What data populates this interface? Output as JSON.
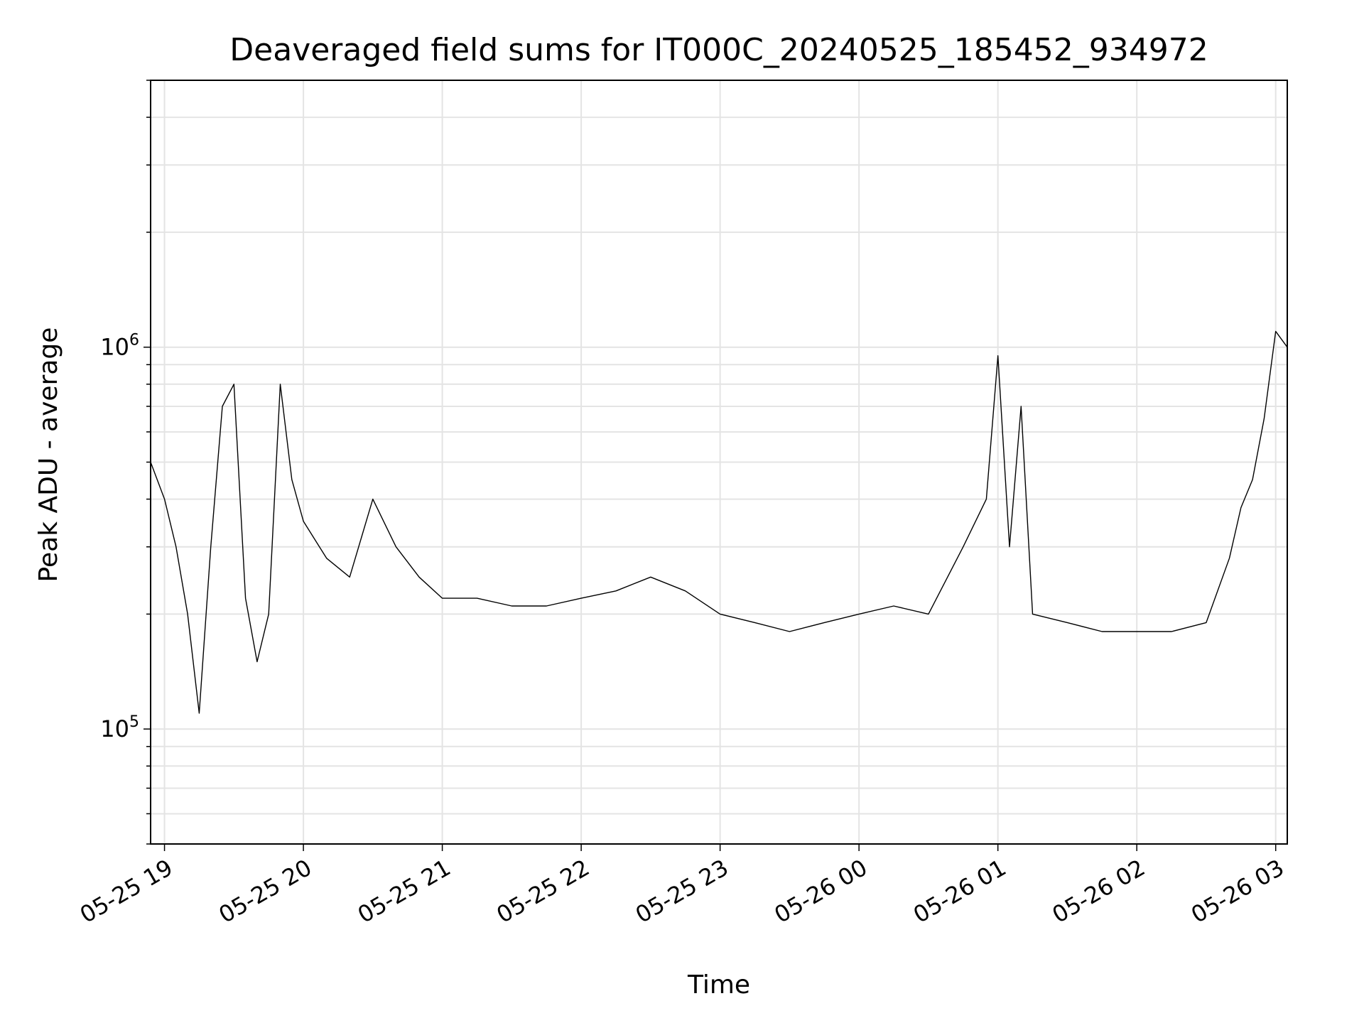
{
  "chart_data": {
    "type": "line",
    "title": "Deaveraged field sums for IT000C_20240525_185452_934972",
    "xlabel": "Time",
    "ylabel": "Peak ADU - average",
    "xscale": "time",
    "yscale": "log",
    "grid": true,
    "xlim": [
      "2024-05-25 18:54",
      "2024-05-26 03:05"
    ],
    "ylim": [
      50000,
      5000000
    ],
    "x_ticks": [
      {
        "time": "2024-05-25 19:00",
        "label": "05-25 19"
      },
      {
        "time": "2024-05-25 20:00",
        "label": "05-25 20"
      },
      {
        "time": "2024-05-25 21:00",
        "label": "05-25 21"
      },
      {
        "time": "2024-05-25 22:00",
        "label": "05-25 22"
      },
      {
        "time": "2024-05-25 23:00",
        "label": "05-25 23"
      },
      {
        "time": "2024-05-26 00:00",
        "label": "05-26 00"
      },
      {
        "time": "2024-05-26 01:00",
        "label": "05-26 01"
      },
      {
        "time": "2024-05-26 02:00",
        "label": "05-26 02"
      },
      {
        "time": "2024-05-26 03:00",
        "label": "05-26 03"
      }
    ],
    "y_ticks": [
      {
        "value": 100000,
        "base": "10",
        "exp": "5"
      },
      {
        "value": 1000000,
        "base": "10",
        "exp": "6"
      }
    ],
    "series": [
      {
        "color": "#000000",
        "x": [
          "2024-05-25 18:54",
          "2024-05-25 19:00",
          "2024-05-25 19:05",
          "2024-05-25 19:10",
          "2024-05-25 19:15",
          "2024-05-25 19:20",
          "2024-05-25 19:25",
          "2024-05-25 19:30",
          "2024-05-25 19:35",
          "2024-05-25 19:40",
          "2024-05-25 19:45",
          "2024-05-25 19:50",
          "2024-05-25 19:55",
          "2024-05-25 20:00",
          "2024-05-25 20:10",
          "2024-05-25 20:20",
          "2024-05-25 20:30",
          "2024-05-25 20:40",
          "2024-05-25 20:50",
          "2024-05-25 21:00",
          "2024-05-25 21:15",
          "2024-05-25 21:30",
          "2024-05-25 21:45",
          "2024-05-25 22:00",
          "2024-05-25 22:15",
          "2024-05-25 22:30",
          "2024-05-25 22:45",
          "2024-05-25 23:00",
          "2024-05-25 23:15",
          "2024-05-25 23:30",
          "2024-05-25 23:45",
          "2024-05-26 00:00",
          "2024-05-26 00:15",
          "2024-05-26 00:30",
          "2024-05-26 00:45",
          "2024-05-26 00:55",
          "2024-05-26 01:00",
          "2024-05-26 01:05",
          "2024-05-26 01:10",
          "2024-05-26 01:15",
          "2024-05-26 01:30",
          "2024-05-26 01:45",
          "2024-05-26 02:00",
          "2024-05-26 02:15",
          "2024-05-26 02:30",
          "2024-05-26 02:40",
          "2024-05-26 02:45",
          "2024-05-26 02:50",
          "2024-05-26 02:55",
          "2024-05-26 03:00",
          "2024-05-26 03:05"
        ],
        "y": [
          500000,
          400000,
          300000,
          200000,
          110000,
          300000,
          700000,
          800000,
          220000,
          150000,
          200000,
          800000,
          450000,
          350000,
          280000,
          250000,
          400000,
          300000,
          250000,
          220000,
          220000,
          210000,
          210000,
          220000,
          230000,
          250000,
          230000,
          200000,
          190000,
          180000,
          190000,
          200000,
          210000,
          200000,
          300000,
          400000,
          950000,
          300000,
          700000,
          200000,
          190000,
          180000,
          180000,
          180000,
          190000,
          280000,
          380000,
          450000,
          650000,
          1100000,
          1000000
        ]
      }
    ]
  }
}
